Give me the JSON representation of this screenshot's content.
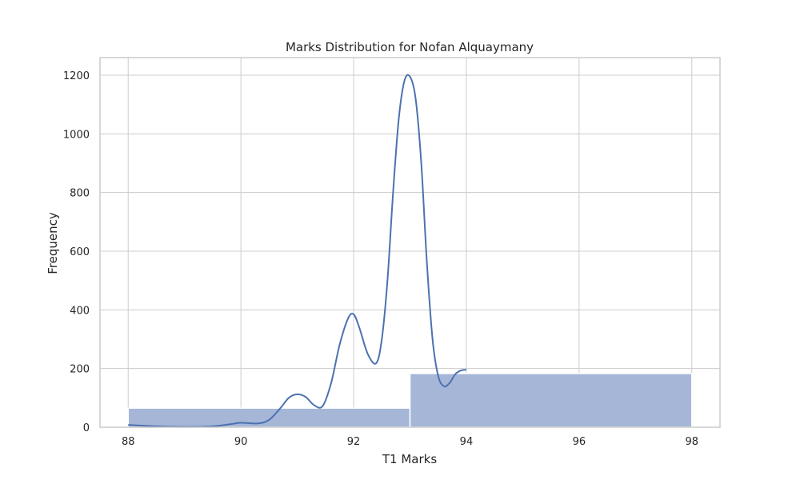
{
  "chart_data": {
    "type": "bar",
    "title": "Marks Distribution for Nofan Alquaymany",
    "xlabel": "T1 Marks",
    "ylabel": "Frequency",
    "xlim": [
      87.5,
      98.5
    ],
    "ylim": [
      0,
      1260
    ],
    "x_ticks": [
      88,
      90,
      92,
      94,
      96,
      98
    ],
    "y_ticks": [
      0,
      200,
      400,
      600,
      800,
      1000,
      1200
    ],
    "grid": true,
    "bars": [
      {
        "x_start": 88,
        "x_end": 93,
        "value": 65
      },
      {
        "x_start": 93,
        "x_end": 98,
        "value": 183
      }
    ],
    "kde_curve": {
      "x": [
        88.0,
        88.5,
        89.0,
        89.5,
        89.8,
        90.0,
        90.3,
        90.5,
        90.7,
        90.85,
        91.0,
        91.15,
        91.3,
        91.45,
        91.6,
        91.75,
        91.9,
        92.0,
        92.1,
        92.25,
        92.4,
        92.5,
        92.6,
        92.7,
        92.8,
        92.9,
        93.0,
        93.1,
        93.2,
        93.3,
        93.4,
        93.5,
        93.6,
        93.7,
        93.8,
        93.9,
        94.0
      ],
      "y": [
        8,
        3,
        1,
        3,
        10,
        15,
        13,
        25,
        65,
        100,
        112,
        103,
        75,
        72,
        150,
        280,
        370,
        385,
        340,
        250,
        218,
        300,
        500,
        800,
        1050,
        1180,
        1195,
        1120,
        900,
        560,
        300,
        175,
        140,
        150,
        180,
        193,
        196
      ]
    },
    "colors": {
      "bar_fill": "#a5b6d7",
      "bar_edge": "#ffffff",
      "line": "#4c72b0",
      "grid": "#cccccc",
      "axes_edge": "#cccccc"
    }
  }
}
